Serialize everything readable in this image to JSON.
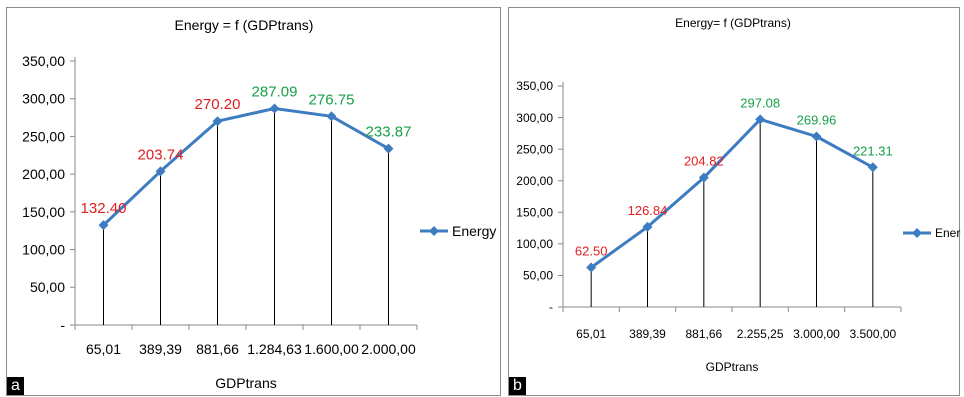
{
  "panels": [
    {
      "label": "a",
      "chart_data": {
        "type": "line",
        "title": "Energy = f (GDPtrans)",
        "xlabel": "GDPtrans",
        "ylabel": "",
        "categories": [
          "65,01",
          "389,39",
          "881,66",
          "1.284,63",
          "1.600,00",
          "2.000,00"
        ],
        "series": [
          {
            "name": "Energy",
            "values": [
              132.4,
              203.74,
              270.2,
              287.09,
              276.75,
              233.87
            ]
          }
        ],
        "data_labels": [
          "132.40",
          "203.74",
          "270.20",
          "287.09",
          "276.75",
          "233.87"
        ],
        "label_colors": [
          "#e02020",
          "#e02020",
          "#e02020",
          "#18a048",
          "#18a048",
          "#18a048"
        ],
        "ylim": [
          0,
          350
        ],
        "yticks": [
          "-",
          "50,00",
          "100,00",
          "150,00",
          "200,00",
          "250,00",
          "300,00",
          "350,00"
        ],
        "drop_lines": true,
        "grid": false,
        "legend": "right",
        "line_color": "#3e7cc2"
      }
    },
    {
      "label": "b",
      "chart_data": {
        "type": "line",
        "title": "Energy= f (GDPtrans)",
        "xlabel": "GDPtrans",
        "ylabel": "",
        "categories": [
          "65,01",
          "389,39",
          "881,66",
          "2.255,25",
          "3.000,00",
          "3.500,00"
        ],
        "series": [
          {
            "name": "Energy",
            "values": [
              62.5,
              126.84,
              204.82,
              297.08,
              269.96,
              221.31
            ]
          }
        ],
        "data_labels": [
          "62.50",
          "126.84",
          "204.82",
          "297.08",
          "269.96",
          "221.31"
        ],
        "label_colors": [
          "#e02020",
          "#e02020",
          "#e02020",
          "#18a048",
          "#18a048",
          "#18a048"
        ],
        "ylim": [
          0,
          350
        ],
        "yticks": [
          "-",
          "50,00",
          "100,00",
          "150,00",
          "200,00",
          "250,00",
          "300,00",
          "350,00"
        ],
        "drop_lines": true,
        "grid": false,
        "legend": "right",
        "line_color": "#3e7cc2"
      }
    }
  ]
}
